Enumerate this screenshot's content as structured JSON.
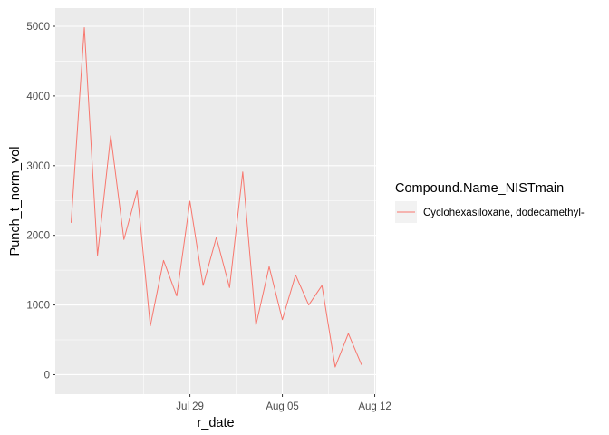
{
  "chart_data": {
    "type": "line",
    "xlabel": "r_date",
    "ylabel": "Punch_t_norm_vol",
    "x_ticks": [
      {
        "date": "2023-07-29",
        "label": "Jul 29"
      },
      {
        "date": "2023-08-05",
        "label": "Aug 05"
      },
      {
        "date": "2023-08-12",
        "label": "Aug 12"
      }
    ],
    "xlim": [
      "2023-07-19",
      "2023-08-11"
    ],
    "y_ticks": [
      0,
      1000,
      2000,
      3000,
      4000,
      5000
    ],
    "ylim": [
      0,
      5000
    ],
    "grid": true,
    "legend": {
      "title": "Compound.Name_NISTmain",
      "position": "right"
    },
    "series": [
      {
        "name": "Cyclohexasiloxane, dodecamethyl-",
        "color": "#F8766D",
        "x": [
          "2023-07-20",
          "2023-07-21",
          "2023-07-22",
          "2023-07-23",
          "2023-07-24",
          "2023-07-25",
          "2023-07-26",
          "2023-07-27",
          "2023-07-28",
          "2023-07-29",
          "2023-07-30",
          "2023-07-31",
          "2023-08-01",
          "2023-08-02",
          "2023-08-03",
          "2023-08-04",
          "2023-08-05",
          "2023-08-06",
          "2023-08-07",
          "2023-08-08",
          "2023-08-09",
          "2023-08-10",
          "2023-08-11"
        ],
        "y": [
          2180,
          4980,
          1710,
          3430,
          1940,
          2640,
          700,
          1640,
          1130,
          2490,
          1280,
          1970,
          1250,
          2910,
          710,
          1550,
          790,
          1430,
          1000,
          1280,
          110,
          590,
          140
        ],
        "x_extra": [
          "2023-08-05",
          "2023-08-06",
          "2023-08-07",
          "2023-08-08",
          "2023-08-09",
          "2023-08-10",
          "2023-08-11"
        ],
        "note_hidden": ""
      }
    ]
  }
}
